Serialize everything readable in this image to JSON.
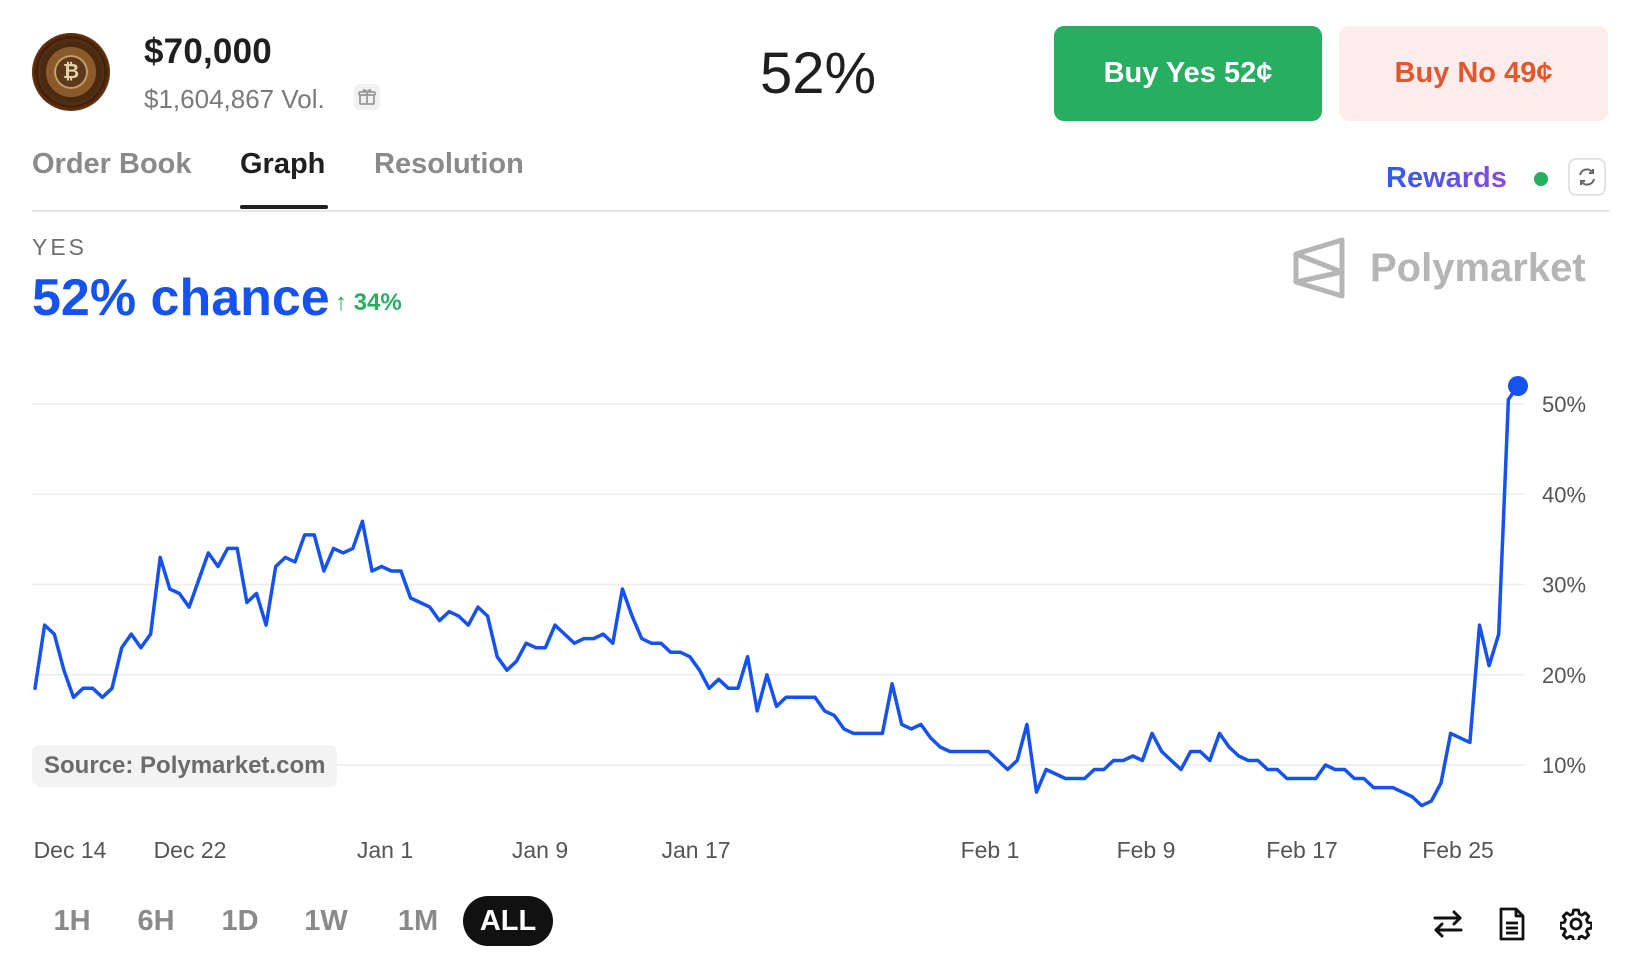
{
  "market": {
    "title": "$70,000",
    "volume": "$1,604,867 Vol.",
    "percent": "52%"
  },
  "buttons": {
    "buy_yes": "Buy Yes 52¢",
    "buy_no": "Buy No 49¢"
  },
  "tabs": [
    {
      "label": "Order Book",
      "active": false
    },
    {
      "label": "Graph",
      "active": true
    },
    {
      "label": "Resolution",
      "active": false
    }
  ],
  "rewards_label": "Rewards",
  "outcome": {
    "label": "YES",
    "chance": "52% chance",
    "change": "34%"
  },
  "brand": "Polymarket",
  "source": "Source: Polymarket.com",
  "ranges": [
    {
      "label": "1H",
      "active": false
    },
    {
      "label": "6H",
      "active": false
    },
    {
      "label": "1D",
      "active": false
    },
    {
      "label": "1W",
      "active": false
    },
    {
      "label": "1M",
      "active": false
    },
    {
      "label": "ALL",
      "active": true
    }
  ],
  "icons": {
    "swap": "swap-icon",
    "document": "document-icon",
    "settings": "gear-icon",
    "gift": "gift-icon",
    "refresh": "refresh-icon"
  },
  "colors": {
    "line": "#1652f0",
    "yes": "#27ae60",
    "no_text": "#e4572e",
    "no_bg": "#fdecec"
  },
  "chart_data": {
    "type": "line",
    "x_tick_labels": [
      "Dec 14",
      "Dec 22",
      "Jan 1",
      "Jan 9",
      "Jan 17",
      "Feb 1",
      "Feb 9",
      "Feb 17",
      "Feb 25"
    ],
    "y_tick_labels": [
      "10%",
      "20%",
      "30%",
      "40%",
      "50%"
    ],
    "y_ticks": [
      10,
      20,
      30,
      40,
      50
    ],
    "ylim": [
      0,
      55
    ],
    "grid": true,
    "series": [
      {
        "values": [
          18.5,
          25.5,
          24.5,
          20.5,
          17.5,
          18.5,
          18.5,
          17.5,
          18.5,
          23,
          24.5,
          23,
          24.5,
          33,
          29.5,
          29,
          27.5,
          30.5,
          33.5,
          32,
          34,
          34,
          28,
          29,
          25.5,
          32,
          33,
          32.5,
          35.5,
          35.5,
          31.5,
          34,
          33.5,
          34,
          37,
          31.5,
          32,
          31.5,
          31.5,
          28.5,
          28,
          27.5,
          26,
          27,
          26.5,
          25.5,
          27.5,
          26.5,
          22,
          20.5,
          21.5,
          23.5,
          23,
          23,
          25.5,
          24.5,
          23.5,
          24,
          24,
          24.5,
          23.5,
          29.5,
          26.5,
          24,
          23.5,
          23.5,
          22.5,
          22.5,
          22,
          20.5,
          18.5,
          19.5,
          18.5,
          18.5,
          22,
          16,
          20,
          16.5,
          17.5,
          17.5,
          17.5,
          17.5,
          16,
          15.5,
          14,
          13.5,
          13.5,
          13.5,
          13.5,
          19,
          14.5,
          14,
          14.5,
          13,
          12,
          11.5,
          11.5,
          11.5,
          11.5,
          11.5,
          10.5,
          9.5,
          10.5,
          14.5,
          7,
          9.5,
          9,
          8.5,
          8.5,
          8.5,
          9.5,
          9.5,
          10.5,
          10.5,
          11,
          10.5,
          13.5,
          11.5,
          10.5,
          9.5,
          11.5,
          11.5,
          10.5,
          13.5,
          12,
          11,
          10.5,
          10.5,
          9.5,
          9.5,
          8.5,
          8.5,
          8.5,
          8.5,
          10,
          9.5,
          9.5,
          8.5,
          8.5,
          7.5,
          7.5,
          7.5,
          7,
          6.5,
          5.5,
          6,
          8,
          13.5,
          13,
          12.5,
          25.5,
          21,
          24.5,
          50.5,
          52
        ]
      }
    ]
  }
}
